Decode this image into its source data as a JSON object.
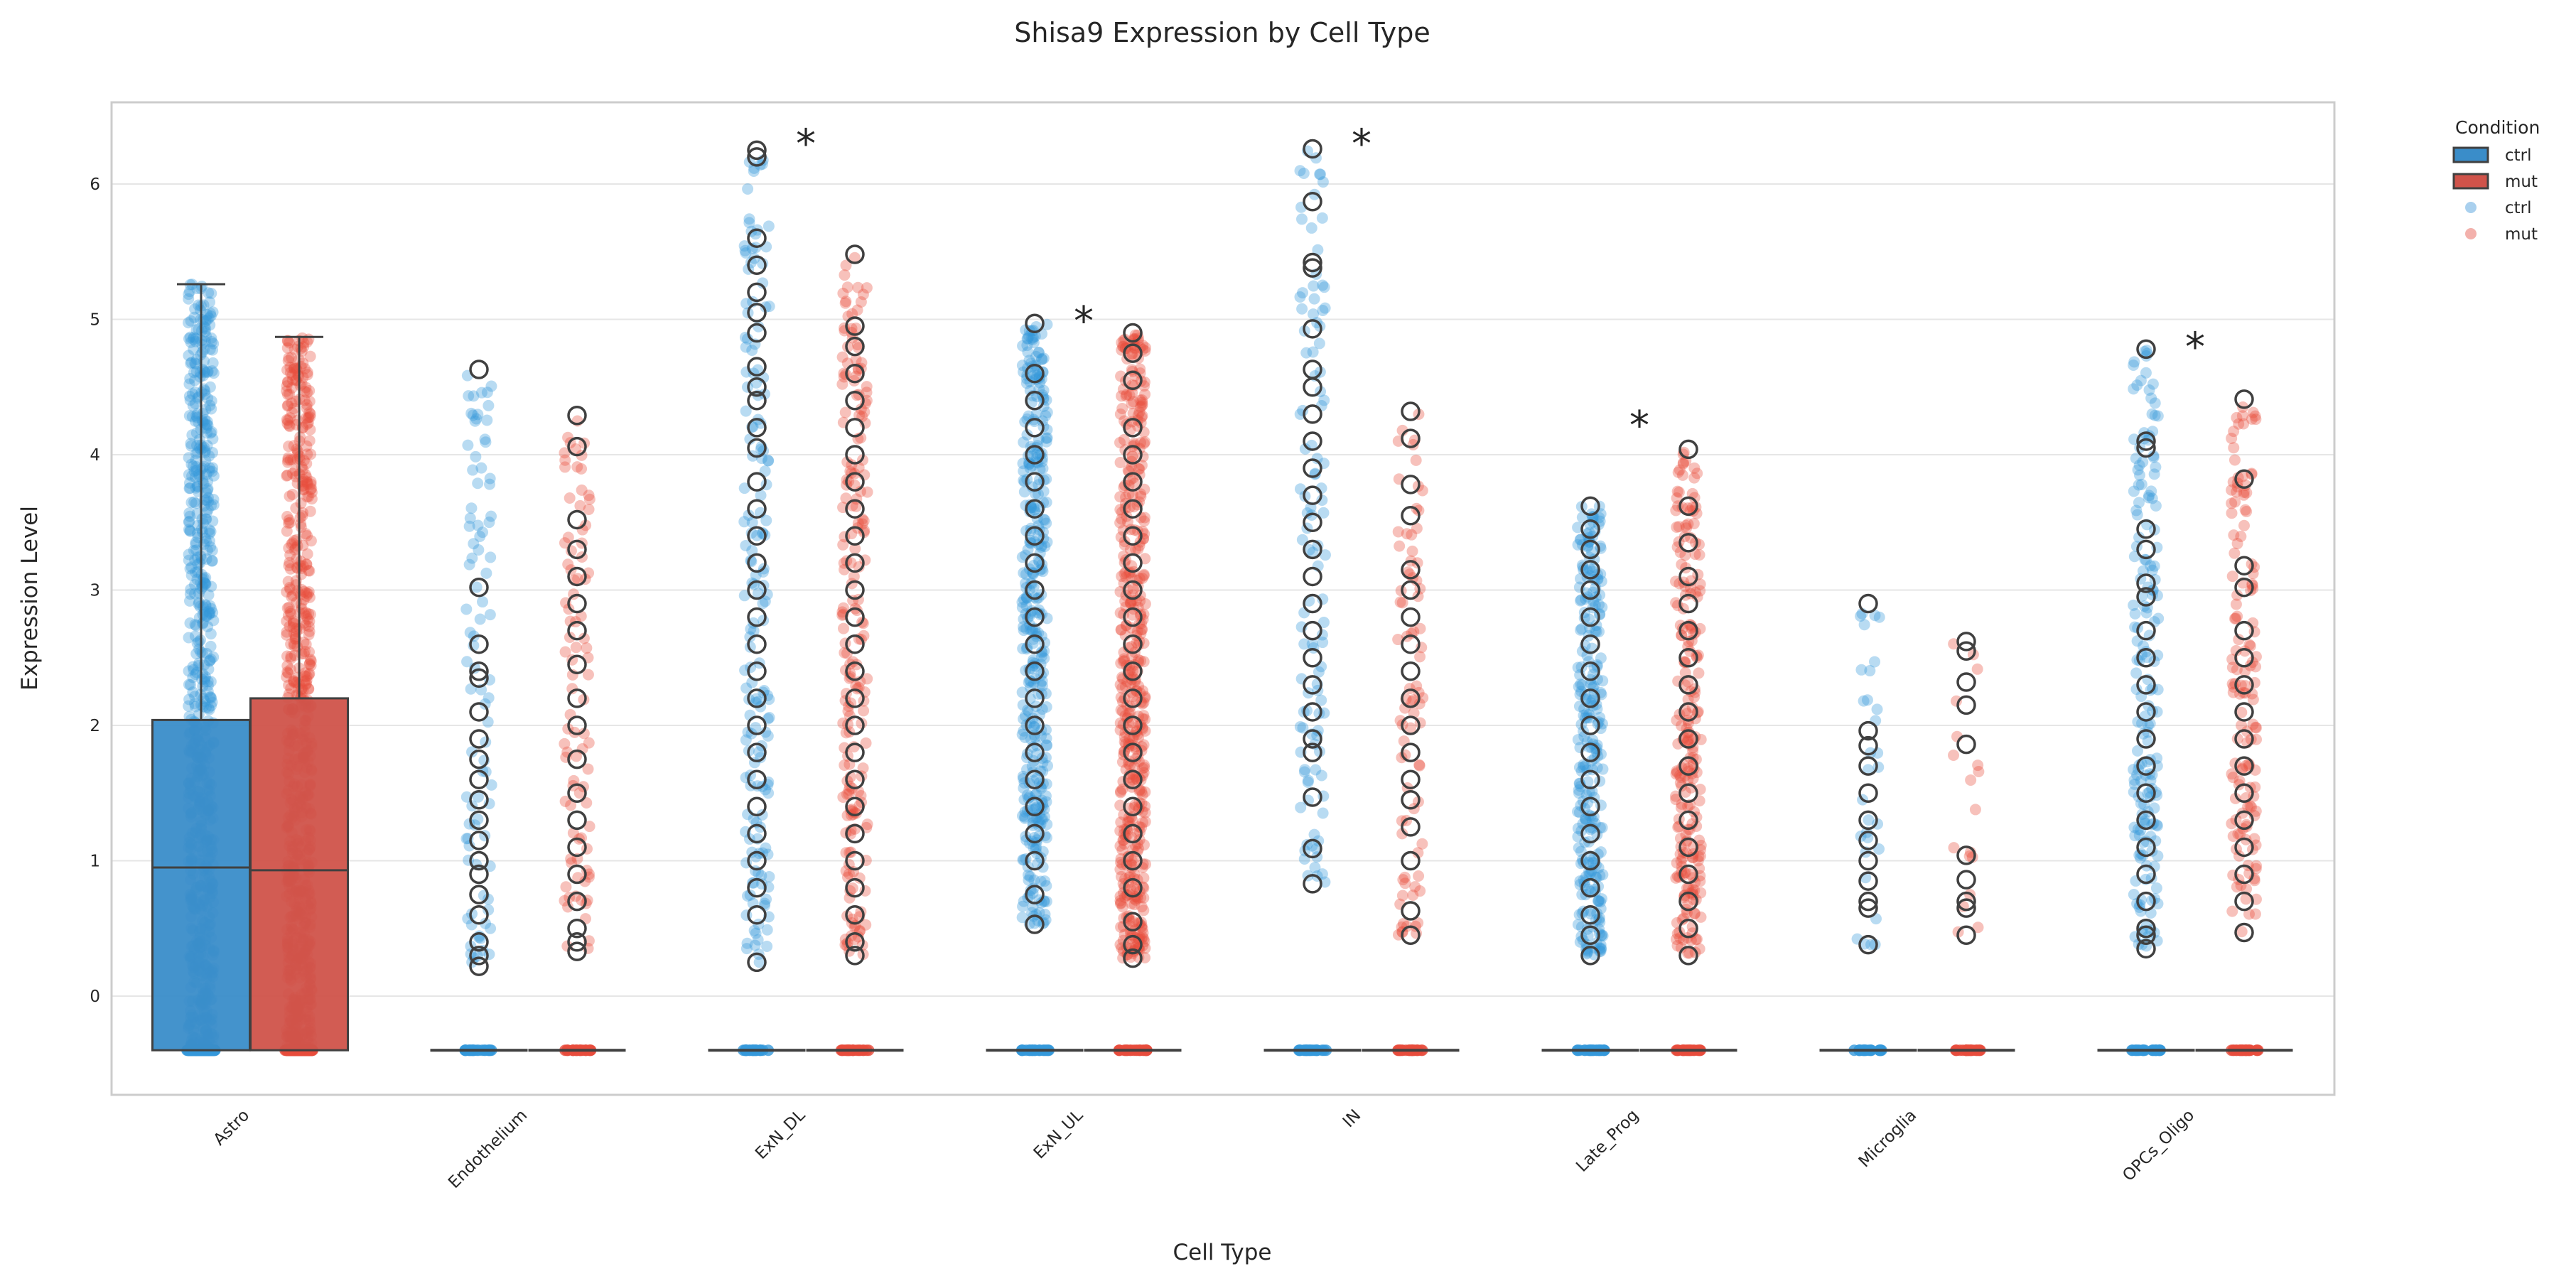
{
  "chart_data": {
    "type": "box",
    "title": "Shisa9 Expression by Cell Type",
    "xlabel": "Cell Type",
    "ylabel": "Expression Level",
    "ylim": [
      -0.72,
      6.6
    ],
    "yticks": [
      0,
      1,
      2,
      3,
      4,
      5,
      6
    ],
    "grid": true,
    "categories": [
      "Astro",
      "Endothelium",
      "ExN_DL",
      "ExN_UL",
      "IN",
      "Late_Prog",
      "Microglia",
      "OPCs_Oligo"
    ],
    "legend": {
      "title": "Condition",
      "position": "outside-top-right",
      "entries": [
        {
          "label": "ctrl",
          "kind": "box",
          "color": "#3A8DC9"
        },
        {
          "label": "mut",
          "kind": "box",
          "color": "#D0534A"
        },
        {
          "label": "ctrl",
          "kind": "point",
          "color": "#A9D0EE"
        },
        {
          "label": "mut",
          "kind": "point",
          "color": "#F3B1AC"
        }
      ]
    },
    "colors": {
      "ctrl_box": "#3A8DC9",
      "mut_box": "#D0534A",
      "ctrl_point": "#3498DB",
      "mut_point": "#E74C3C"
    },
    "series": [
      {
        "name": "ctrl",
        "boxes": [
          {
            "q1": -0.4,
            "median": 0.95,
            "q3": 2.04,
            "whisker_low": -0.4,
            "whisker_high": 5.26,
            "outliers": []
          },
          {
            "q1": -0.4,
            "median": -0.4,
            "q3": -0.4,
            "whisker_low": -0.4,
            "whisker_high": -0.4,
            "outliers": [
              4.63,
              3.02,
              2.6,
              2.4,
              2.35,
              2.1,
              1.9,
              1.75,
              1.6,
              1.45,
              1.3,
              1.15,
              1.0,
              0.9,
              0.75,
              0.6,
              0.4,
              0.3,
              0.22
            ]
          },
          {
            "q1": -0.4,
            "median": -0.4,
            "q3": -0.4,
            "whisker_low": -0.4,
            "whisker_high": -0.4,
            "outliers": [
              6.25,
              6.2,
              5.6,
              5.4,
              5.2,
              5.05,
              4.9,
              4.65,
              4.5,
              4.4,
              4.2,
              4.05,
              3.8,
              3.6,
              3.4,
              3.2,
              3.0,
              2.8,
              2.6,
              2.4,
              2.2,
              2.0,
              1.8,
              1.6,
              1.4,
              1.2,
              1.0,
              0.8,
              0.6,
              0.25
            ]
          },
          {
            "q1": -0.4,
            "median": -0.4,
            "q3": -0.4,
            "whisker_low": -0.4,
            "whisker_high": -0.4,
            "outliers": [
              4.97,
              4.6,
              4.4,
              4.2,
              4.0,
              3.8,
              3.6,
              3.4,
              3.2,
              3.0,
              2.8,
              2.6,
              2.4,
              2.2,
              2.0,
              1.8,
              1.6,
              1.4,
              1.2,
              1.0,
              0.75,
              0.53
            ]
          },
          {
            "q1": -0.4,
            "median": -0.4,
            "q3": -0.4,
            "whisker_low": -0.4,
            "whisker_high": -0.4,
            "outliers": [
              6.26,
              5.87,
              5.42,
              5.38,
              4.93,
              4.63,
              4.5,
              4.3,
              4.1,
              3.9,
              3.7,
              3.5,
              3.3,
              3.1,
              2.9,
              2.7,
              2.5,
              2.3,
              2.1,
              1.9,
              1.8,
              1.47,
              1.09,
              0.83
            ]
          },
          {
            "q1": -0.4,
            "median": -0.4,
            "q3": -0.4,
            "whisker_low": -0.4,
            "whisker_high": -0.4,
            "outliers": [
              3.62,
              3.45,
              3.3,
              3.15,
              3.0,
              2.8,
              2.6,
              2.4,
              2.2,
              2.0,
              1.8,
              1.6,
              1.4,
              1.2,
              1.0,
              0.8,
              0.6,
              0.45,
              0.3
            ]
          },
          {
            "q1": -0.4,
            "median": -0.4,
            "q3": -0.4,
            "whisker_low": -0.4,
            "whisker_high": -0.4,
            "outliers": [
              2.9,
              1.96,
              1.85,
              1.7,
              1.5,
              1.3,
              1.15,
              1.0,
              0.85,
              0.7,
              0.65,
              0.38
            ]
          },
          {
            "q1": -0.4,
            "median": -0.4,
            "q3": -0.4,
            "whisker_low": -0.4,
            "whisker_high": -0.4,
            "outliers": [
              4.78,
              4.1,
              4.05,
              3.45,
              3.3,
              3.05,
              2.95,
              2.7,
              2.5,
              2.3,
              2.1,
              1.9,
              1.7,
              1.5,
              1.3,
              1.1,
              0.9,
              0.7,
              0.5,
              0.45,
              0.35
            ]
          }
        ]
      },
      {
        "name": "mut",
        "boxes": [
          {
            "q1": -0.4,
            "median": 0.93,
            "q3": 2.2,
            "whisker_low": -0.4,
            "whisker_high": 4.87,
            "outliers": []
          },
          {
            "q1": -0.4,
            "median": -0.4,
            "q3": -0.4,
            "whisker_low": -0.4,
            "whisker_high": -0.4,
            "outliers": [
              4.29,
              4.06,
              3.52,
              3.3,
              3.1,
              2.9,
              2.7,
              2.45,
              2.2,
              2.0,
              1.75,
              1.5,
              1.3,
              1.1,
              0.9,
              0.7,
              0.5,
              0.4,
              0.33
            ]
          },
          {
            "q1": -0.4,
            "median": -0.4,
            "q3": -0.4,
            "whisker_low": -0.4,
            "whisker_high": -0.4,
            "outliers": [
              5.48,
              4.95,
              4.8,
              4.6,
              4.4,
              4.2,
              4.0,
              3.8,
              3.6,
              3.4,
              3.2,
              3.0,
              2.8,
              2.6,
              2.4,
              2.2,
              2.0,
              1.8,
              1.6,
              1.4,
              1.2,
              1.0,
              0.8,
              0.6,
              0.4,
              0.3
            ]
          },
          {
            "q1": -0.4,
            "median": -0.4,
            "q3": -0.4,
            "whisker_low": -0.4,
            "whisker_high": -0.4,
            "outliers": [
              4.9,
              4.75,
              4.55,
              4.2,
              4.0,
              3.8,
              3.6,
              3.4,
              3.2,
              3.0,
              2.8,
              2.6,
              2.4,
              2.2,
              2.0,
              1.8,
              1.6,
              1.4,
              1.2,
              1.0,
              0.8,
              0.55,
              0.38,
              0.28
            ]
          },
          {
            "q1": -0.4,
            "median": -0.4,
            "q3": -0.4,
            "whisker_low": -0.4,
            "whisker_high": -0.4,
            "outliers": [
              4.32,
              4.12,
              3.78,
              3.55,
              3.15,
              3.0,
              2.8,
              2.6,
              2.4,
              2.2,
              2.0,
              1.8,
              1.6,
              1.45,
              1.25,
              1.0,
              0.63,
              0.45
            ]
          },
          {
            "q1": -0.4,
            "median": -0.4,
            "q3": -0.4,
            "whisker_low": -0.4,
            "whisker_high": -0.4,
            "outliers": [
              4.04,
              3.62,
              3.35,
              3.1,
              2.9,
              2.7,
              2.5,
              2.3,
              2.1,
              1.9,
              1.7,
              1.5,
              1.3,
              1.1,
              0.9,
              0.7,
              0.5,
              0.3
            ]
          },
          {
            "q1": -0.4,
            "median": -0.4,
            "q3": -0.4,
            "whisker_low": -0.4,
            "whisker_high": -0.4,
            "outliers": [
              2.62,
              2.55,
              2.32,
              2.15,
              1.86,
              1.04,
              0.86,
              0.7,
              0.65,
              0.45
            ]
          },
          {
            "q1": -0.4,
            "median": -0.4,
            "q3": -0.4,
            "whisker_low": -0.4,
            "whisker_high": -0.4,
            "outliers": [
              4.41,
              3.82,
              3.18,
              3.02,
              2.7,
              2.5,
              2.3,
              2.1,
              1.9,
              1.7,
              1.5,
              1.3,
              1.1,
              0.9,
              0.7,
              0.47
            ]
          }
        ]
      }
    ],
    "points": [
      {
        "series": "ctrl",
        "category": "Astro",
        "range": [
          -0.4,
          5.26
        ],
        "count": 1100
      },
      {
        "series": "mut",
        "category": "Astro",
        "range": [
          -0.4,
          4.87
        ],
        "count": 1100
      },
      {
        "series": "ctrl",
        "category": "Endothelium",
        "range": [
          0.22,
          4.63
        ],
        "count": 90
      },
      {
        "series": "mut",
        "category": "Endothelium",
        "range": [
          0.33,
          4.29
        ],
        "count": 90
      },
      {
        "series": "ctrl",
        "category": "ExN_DL",
        "range": [
          0.25,
          6.25
        ],
        "count": 170
      },
      {
        "series": "mut",
        "category": "ExN_DL",
        "range": [
          0.3,
          5.48
        ],
        "count": 200
      },
      {
        "series": "ctrl",
        "category": "ExN_UL",
        "range": [
          0.53,
          4.97
        ],
        "count": 380
      },
      {
        "series": "mut",
        "category": "ExN_UL",
        "range": [
          0.28,
          4.9
        ],
        "count": 480
      },
      {
        "series": "ctrl",
        "category": "IN",
        "range": [
          0.83,
          6.26
        ],
        "count": 110
      },
      {
        "series": "mut",
        "category": "IN",
        "range": [
          0.45,
          4.32
        ],
        "count": 80
      },
      {
        "series": "ctrl",
        "category": "Late_Prog",
        "range": [
          0.3,
          3.62
        ],
        "count": 270
      },
      {
        "series": "mut",
        "category": "Late_Prog",
        "range": [
          0.3,
          4.04
        ],
        "count": 230
      },
      {
        "series": "ctrl",
        "category": "Microglia",
        "range": [
          0.38,
          2.9
        ],
        "count": 30
      },
      {
        "series": "mut",
        "category": "Microglia",
        "range": [
          0.45,
          2.62
        ],
        "count": 18
      },
      {
        "series": "ctrl",
        "category": "OPCs_Oligo",
        "range": [
          0.35,
          4.78
        ],
        "count": 180
      },
      {
        "series": "mut",
        "category": "OPCs_Oligo",
        "range": [
          0.47,
          4.41
        ],
        "count": 140
      }
    ],
    "annotations": [
      {
        "text": "*",
        "category": "ExN_DL",
        "y": 6.28
      },
      {
        "text": "*",
        "category": "ExN_UL",
        "y": 4.97
      },
      {
        "text": "*",
        "category": "IN",
        "y": 6.28
      },
      {
        "text": "*",
        "category": "Late_Prog",
        "y": 4.2
      },
      {
        "text": "*",
        "category": "OPCs_Oligo",
        "y": 4.78
      }
    ]
  }
}
